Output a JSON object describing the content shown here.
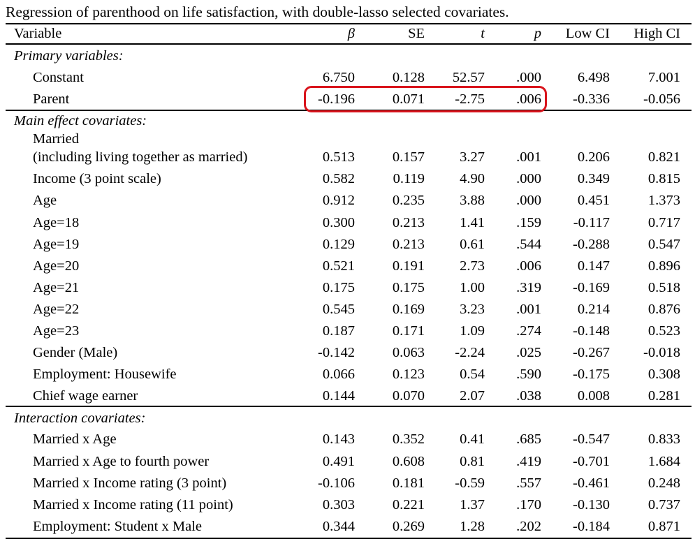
{
  "caption": "Regression of parenthood on life satisfaction, with double-lasso selected covariates.",
  "columns": {
    "variable": "Variable",
    "beta": "β",
    "se": "SE",
    "t": "t",
    "p": "p",
    "low_ci": "Low CI",
    "high_ci": "High CI"
  },
  "rows": [
    {
      "type": "section",
      "label": "Primary variables:"
    },
    {
      "type": "data",
      "label": "Constant",
      "beta": "6.750",
      "se": "0.128",
      "t": "52.57",
      "p": ".000",
      "low_ci": "6.498",
      "high_ci": "7.001"
    },
    {
      "type": "data",
      "label": "Parent",
      "beta": "-0.196",
      "se": "0.071",
      "t": "-2.75",
      "p": ".006",
      "low_ci": "-0.336",
      "high_ci": "-0.056",
      "highlighted": true
    },
    {
      "type": "section",
      "label": "Main effect covariates:"
    },
    {
      "type": "data",
      "label": "Married",
      "label_line2": "(including living together as married)",
      "beta": "0.513",
      "se": "0.157",
      "t": "3.27",
      "p": ".001",
      "low_ci": "0.206",
      "high_ci": "0.821"
    },
    {
      "type": "data",
      "label": "Income (3 point scale)",
      "beta": "0.582",
      "se": "0.119",
      "t": "4.90",
      "p": ".000",
      "low_ci": "0.349",
      "high_ci": "0.815"
    },
    {
      "type": "data",
      "label": "Age",
      "beta": "0.912",
      "se": "0.235",
      "t": "3.88",
      "p": ".000",
      "low_ci": "0.451",
      "high_ci": "1.373"
    },
    {
      "type": "data",
      "label": "Age=18",
      "beta": "0.300",
      "se": "0.213",
      "t": "1.41",
      "p": ".159",
      "low_ci": "-0.117",
      "high_ci": "0.717"
    },
    {
      "type": "data",
      "label": "Age=19",
      "beta": "0.129",
      "se": "0.213",
      "t": "0.61",
      "p": ".544",
      "low_ci": "-0.288",
      "high_ci": "0.547"
    },
    {
      "type": "data",
      "label": "Age=20",
      "beta": "0.521",
      "se": "0.191",
      "t": "2.73",
      "p": ".006",
      "low_ci": "0.147",
      "high_ci": "0.896"
    },
    {
      "type": "data",
      "label": "Age=21",
      "beta": "0.175",
      "se": "0.175",
      "t": "1.00",
      "p": ".319",
      "low_ci": "-0.169",
      "high_ci": "0.518"
    },
    {
      "type": "data",
      "label": "Age=22",
      "beta": "0.545",
      "se": "0.169",
      "t": "3.23",
      "p": ".001",
      "low_ci": "0.214",
      "high_ci": "0.876"
    },
    {
      "type": "data",
      "label": "Age=23",
      "beta": "0.187",
      "se": "0.171",
      "t": "1.09",
      "p": ".274",
      "low_ci": "-0.148",
      "high_ci": "0.523"
    },
    {
      "type": "data",
      "label": "Gender (Male)",
      "beta": "-0.142",
      "se": "0.063",
      "t": "-2.24",
      "p": ".025",
      "low_ci": "-0.267",
      "high_ci": "-0.018"
    },
    {
      "type": "data",
      "label": "Employment: Housewife",
      "beta": "0.066",
      "se": "0.123",
      "t": "0.54",
      "p": ".590",
      "low_ci": "-0.175",
      "high_ci": "0.308"
    },
    {
      "type": "data",
      "label": "Chief wage earner",
      "beta": "0.144",
      "se": "0.070",
      "t": "2.07",
      "p": ".038",
      "low_ci": "0.008",
      "high_ci": "0.281"
    },
    {
      "type": "section",
      "label": "Interaction covariates:"
    },
    {
      "type": "data",
      "label": "Married x Age",
      "beta": "0.143",
      "se": "0.352",
      "t": "0.41",
      "p": ".685",
      "low_ci": "-0.547",
      "high_ci": "0.833"
    },
    {
      "type": "data",
      "label": "Married x Age to fourth power",
      "beta": "0.491",
      "se": "0.608",
      "t": "0.81",
      "p": ".419",
      "low_ci": "-0.701",
      "high_ci": "1.684"
    },
    {
      "type": "data",
      "label": "Married x Income rating (3 point)",
      "beta": "-0.106",
      "se": "0.181",
      "t": "-0.59",
      "p": ".557",
      "low_ci": "-0.461",
      "high_ci": "0.248"
    },
    {
      "type": "data",
      "label": "Married x Income rating (11 point)",
      "beta": "0.303",
      "se": "0.221",
      "t": "1.37",
      "p": ".170",
      "low_ci": "-0.130",
      "high_ci": "0.737"
    },
    {
      "type": "data",
      "label": "Employment: Student x Male",
      "beta": "0.344",
      "se": "0.269",
      "t": "1.28",
      "p": ".202",
      "low_ci": "-0.184",
      "high_ci": "0.871"
    }
  ]
}
